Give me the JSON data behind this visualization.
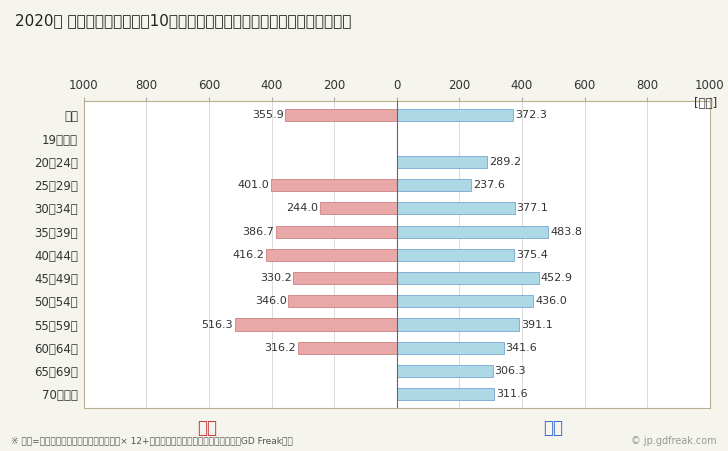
{
  "title": "2020年 民間企業（従業者数10人以上）フルタイム労働者の男女別平均年収",
  "footnote": "※ 年収=「きまって支給する現金給与額」× 12+「年間賞与その他特別給与額」としてGD Freak推計",
  "watermark": "© jp.gdfreak.com",
  "ylabel_unit": "[万円]",
  "categories": [
    "全体",
    "19歳以下",
    "20〜24歳",
    "25〜29歳",
    "30〜34歳",
    "35〜39歳",
    "40〜44歳",
    "45〜49歳",
    "50〜54歳",
    "55〜59歳",
    "60〜64歳",
    "65〜69歳",
    "70歳以上"
  ],
  "female_values": [
    355.9,
    0,
    0,
    401.0,
    244.0,
    386.7,
    416.2,
    330.2,
    346.0,
    516.3,
    316.2,
    0,
    0
  ],
  "male_values": [
    372.3,
    0,
    289.2,
    237.6,
    377.1,
    483.8,
    375.4,
    452.9,
    436.0,
    391.1,
    341.6,
    306.3,
    311.6
  ],
  "female_color": "#e8a8a8",
  "male_color": "#add8e6",
  "female_border_color": "#c87070",
  "male_border_color": "#6699cc",
  "female_label": "女性",
  "male_label": "男性",
  "female_label_color": "#cc3333",
  "male_label_color": "#3366cc",
  "xlim": 1000,
  "background_color": "#f5f5ee",
  "plot_bg_color": "#ffffff",
  "bar_height": 0.52,
  "title_fontsize": 11,
  "tick_fontsize": 8.5,
  "annotation_fontsize": 8,
  "legend_fontsize": 12,
  "footnote_fontsize": 6.5,
  "watermark_fontsize": 7
}
